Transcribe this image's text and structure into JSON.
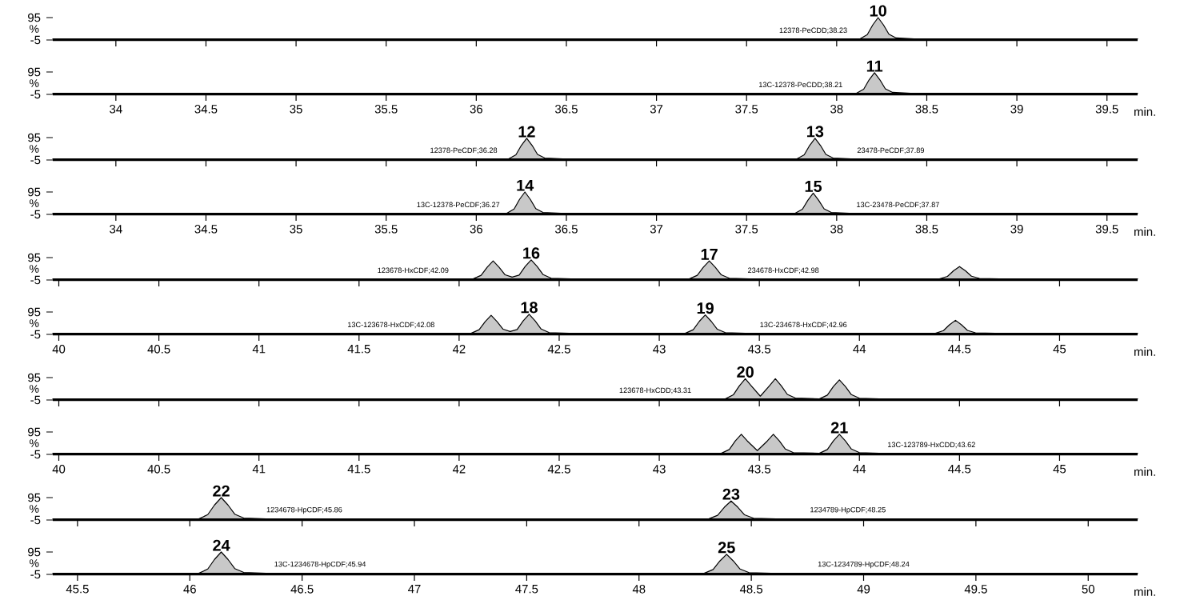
{
  "chart_data": [
    {
      "type": "area",
      "xlim": [
        33.65,
        39.67
      ],
      "xticks": [
        34,
        34.5,
        35,
        35.5,
        36,
        36.5,
        37,
        37.5,
        38,
        38.5,
        39,
        39.5
      ],
      "ylim": [
        -5,
        95
      ],
      "yticks": [
        95,
        -5
      ],
      "ylabel": "%",
      "tick_labels": "y",
      "series": [
        {
          "color": "#c8c8c8",
          "x": [
            33.65,
            38.13,
            38.17,
            38.2,
            38.23,
            38.26,
            38.29,
            38.33,
            38.43,
            39.67
          ],
          "values": [
            0,
            0,
            19,
            62,
            95,
            62,
            21,
            4,
            0,
            0
          ]
        }
      ],
      "annotations": [
        {
          "text": "10",
          "x": 38.23,
          "y": 95
        },
        {
          "text": "12378-PeCDD;38.23",
          "x": 37.87,
          "y": 0
        }
      ]
    },
    {
      "type": "area",
      "xlim": [
        33.65,
        39.67
      ],
      "xticks": [
        34,
        34.5,
        35,
        35.5,
        36,
        36.5,
        37,
        37.5,
        38,
        38.5,
        39,
        39.5
      ],
      "ylim": [
        -5,
        95
      ],
      "yticks": [
        95,
        -5
      ],
      "ylabel": "%",
      "xlabel": "min.",
      "series": [
        {
          "color": "#c8c8c8",
          "x": [
            33.65,
            38.11,
            38.15,
            38.18,
            38.21,
            38.24,
            38.27,
            38.31,
            38.41,
            39.67
          ],
          "values": [
            0,
            0,
            18,
            60,
            92,
            60,
            20,
            4,
            0,
            0
          ]
        }
      ],
      "annotations": [
        {
          "text": "11",
          "x": 38.21,
          "y": 92
        },
        {
          "text": "13C-12378-PeCDD;38.21",
          "x": 37.8,
          "y": 0
        }
      ]
    },
    {
      "type": "area",
      "xlim": [
        33.65,
        39.67
      ],
      "xticks": [
        34,
        34.5,
        35,
        35.5,
        36,
        36.5,
        37,
        37.5,
        38,
        38.5,
        39,
        39.5
      ],
      "ylim": [
        -5,
        95
      ],
      "yticks": [
        95,
        -5
      ],
      "ylabel": "%",
      "tick_labels": "y",
      "series": [
        {
          "color": "#c8c8c8",
          "x": [
            33.65,
            36.18,
            36.22,
            36.25,
            36.28,
            36.31,
            36.34,
            36.38,
            36.48,
            37.78,
            37.82,
            37.85,
            37.88,
            37.91,
            37.94,
            37.98,
            38.08,
            39.67
          ],
          "values": [
            0,
            0,
            18,
            60,
            92,
            60,
            20,
            4,
            0,
            0,
            18,
            60,
            92,
            60,
            20,
            4,
            0,
            0
          ]
        }
      ],
      "annotations": [
        {
          "text": "12",
          "x": 36.28,
          "y": 92
        },
        {
          "text": "12378-PeCDF;36.28",
          "x": 35.93,
          "y": 0
        },
        {
          "text": "13",
          "x": 37.88,
          "y": 92
        },
        {
          "text": "23478-PeCDF;37.89",
          "x": 38.3,
          "y": 0
        }
      ]
    },
    {
      "type": "area",
      "xlim": [
        33.65,
        39.67
      ],
      "xticks": [
        34,
        34.5,
        35,
        35.5,
        36,
        36.5,
        37,
        37.5,
        38,
        38.5,
        39,
        39.5
      ],
      "ylim": [
        -5,
        95
      ],
      "yticks": [
        95,
        -5
      ],
      "ylabel": "%",
      "xlabel": "min.",
      "series": [
        {
          "color": "#c8c8c8",
          "x": [
            33.65,
            36.17,
            36.21,
            36.24,
            36.27,
            36.3,
            36.33,
            36.37,
            36.47,
            37.77,
            37.81,
            37.84,
            37.87,
            37.9,
            37.93,
            37.97,
            38.07,
            39.67
          ],
          "values": [
            0,
            0,
            19,
            62,
            95,
            62,
            21,
            4,
            0,
            0,
            18,
            58,
            90,
            58,
            20,
            4,
            0,
            0
          ]
        }
      ],
      "annotations": [
        {
          "text": "14",
          "x": 36.27,
          "y": 95
        },
        {
          "text": "13C-12378-PeCDF;36.27",
          "x": 35.9,
          "y": 0
        },
        {
          "text": "15",
          "x": 37.87,
          "y": 90
        },
        {
          "text": "13C-23478-PeCDF;37.87",
          "x": 38.34,
          "y": 0
        }
      ]
    },
    {
      "type": "area",
      "xlim": [
        39.97,
        45.39
      ],
      "xticks": [
        40,
        40.5,
        41,
        41.5,
        42,
        42.5,
        43,
        43.5,
        44,
        44.5,
        45
      ],
      "ylim": [
        -5,
        95
      ],
      "yticks": [
        95,
        -5
      ],
      "ylabel": "%",
      "tick_labels": "y",
      "series": [
        {
          "color": "#c8c8c8",
          "x": [
            39.97,
            42.07,
            42.11,
            42.14,
            42.17,
            42.2,
            42.23,
            42.265,
            42.3,
            42.33,
            42.36,
            42.39,
            42.42,
            42.46,
            42.56,
            43.15,
            43.19,
            43.22,
            43.25,
            43.28,
            43.31,
            43.35,
            43.45,
            44.4,
            44.44,
            44.47,
            44.5,
            44.53,
            44.56,
            44.6,
            44.7,
            45.39
          ],
          "values": [
            0,
            0,
            16,
            52,
            80,
            52,
            18,
            8,
            17,
            55,
            85,
            55,
            19,
            3,
            0,
            0,
            16,
            52,
            80,
            52,
            18,
            3,
            0,
            0,
            11,
            36,
            55,
            36,
            12,
            2,
            0,
            0
          ]
        }
      ],
      "annotations": [
        {
          "text": "16",
          "x": 42.36,
          "y": 85
        },
        {
          "text": "123678-HxCDF;42.09",
          "x": 41.77,
          "y": 0
        },
        {
          "text": "17",
          "x": 43.25,
          "y": 80
        },
        {
          "text": "234678-HxCDF;42.98",
          "x": 43.62,
          "y": 0
        }
      ]
    },
    {
      "type": "area",
      "xlim": [
        39.97,
        45.39
      ],
      "xticks": [
        40,
        40.5,
        41,
        41.5,
        42,
        42.5,
        43,
        43.5,
        44,
        44.5,
        45
      ],
      "ylim": [
        -5,
        95
      ],
      "yticks": [
        95,
        -5
      ],
      "ylabel": "%",
      "xlabel": "min.",
      "series": [
        {
          "color": "#c8c8c8",
          "x": [
            39.97,
            42.06,
            42.1,
            42.13,
            42.16,
            42.19,
            42.22,
            42.255,
            42.29,
            42.32,
            42.35,
            42.38,
            42.41,
            42.45,
            42.55,
            43.13,
            43.17,
            43.2,
            43.23,
            43.26,
            43.29,
            43.33,
            43.43,
            44.38,
            44.42,
            44.45,
            44.48,
            44.51,
            44.54,
            44.58,
            44.68,
            45.39
          ],
          "values": [
            0,
            0,
            16,
            52,
            80,
            52,
            18,
            8,
            17,
            55,
            85,
            55,
            19,
            3,
            0,
            0,
            16,
            53,
            82,
            53,
            18,
            3,
            0,
            0,
            12,
            38,
            58,
            38,
            13,
            2,
            0,
            0
          ]
        }
      ],
      "annotations": [
        {
          "text": "18",
          "x": 42.35,
          "y": 85
        },
        {
          "text": "13C-123678-HxCDF;42.08",
          "x": 41.66,
          "y": 0
        },
        {
          "text": "19",
          "x": 43.23,
          "y": 82
        },
        {
          "text": "13C-234678-HxCDF;42.96",
          "x": 43.72,
          "y": 0
        }
      ]
    },
    {
      "type": "area",
      "xlim": [
        39.97,
        45.39
      ],
      "xticks": [
        40,
        40.5,
        41,
        41.5,
        42,
        42.5,
        43,
        43.5,
        44,
        44.5,
        45
      ],
      "ylim": [
        -5,
        95
      ],
      "yticks": [
        95,
        -5
      ],
      "ylabel": "%",
      "tick_labels": "y",
      "series": [
        {
          "color": "#c8c8c8",
          "x": [
            39.97,
            43.33,
            43.37,
            43.4,
            43.43,
            43.46,
            43.505,
            43.55,
            43.58,
            43.61,
            43.64,
            43.68,
            43.8,
            43.84,
            43.87,
            43.9,
            43.93,
            43.96,
            44.0,
            44.1,
            45.39
          ],
          "values": [
            0,
            0,
            18,
            58,
            90,
            58,
            12,
            58,
            90,
            58,
            20,
            4,
            0,
            17,
            55,
            85,
            55,
            19,
            3,
            0,
            0
          ]
        }
      ],
      "annotations": [
        {
          "text": "20",
          "x": 43.43,
          "y": 90
        },
        {
          "text": "123678-HxCDD;43.31",
          "x": 42.98,
          "y": 0
        }
      ]
    },
    {
      "type": "area",
      "xlim": [
        39.97,
        45.39
      ],
      "xticks": [
        40,
        40.5,
        41,
        41.5,
        42,
        42.5,
        43,
        43.5,
        44,
        44.5,
        45
      ],
      "ylim": [
        -5,
        95
      ],
      "yticks": [
        95,
        -5
      ],
      "ylabel": "%",
      "xlabel": "min.",
      "series": [
        {
          "color": "#c8c8c8",
          "x": [
            39.97,
            43.31,
            43.35,
            43.38,
            43.41,
            43.44,
            43.49,
            43.54,
            43.57,
            43.6,
            43.63,
            43.67,
            43.8,
            43.84,
            43.87,
            43.9,
            43.93,
            43.96,
            44.0,
            44.1,
            45.39
          ],
          "values": [
            0,
            0,
            17,
            55,
            85,
            55,
            12,
            55,
            85,
            55,
            19,
            3,
            0,
            17,
            55,
            85,
            55,
            19,
            3,
            0,
            0
          ]
        }
      ],
      "annotations": [
        {
          "text": "21",
          "x": 43.9,
          "y": 85
        },
        {
          "text": "13C-123789-HxCDD;43.62",
          "x": 44.36,
          "y": 0
        }
      ]
    },
    {
      "type": "area",
      "xlim": [
        45.39,
        50.22
      ],
      "xticks": [
        45.5,
        46,
        46.5,
        47,
        47.5,
        48,
        48.5,
        49,
        49.5,
        50
      ],
      "ylim": [
        -5,
        95
      ],
      "yticks": [
        95,
        -5
      ],
      "ylabel": "%",
      "tick_labels": "y",
      "series": [
        {
          "color": "#c8c8c8",
          "x": [
            45.39,
            46.04,
            46.08,
            46.11,
            46.14,
            46.17,
            46.2,
            46.24,
            46.34,
            48.31,
            48.35,
            48.38,
            48.41,
            48.44,
            48.47,
            48.51,
            48.61,
            50.22
          ],
          "values": [
            0,
            0,
            19,
            62,
            95,
            62,
            21,
            4,
            0,
            0,
            16,
            52,
            80,
            52,
            18,
            3,
            0,
            0
          ]
        }
      ],
      "annotations": [
        {
          "text": "22",
          "x": 46.14,
          "y": 95
        },
        {
          "text": "1234678-HpCDF;45.86",
          "x": 46.51,
          "y": 0
        },
        {
          "text": "23",
          "x": 48.41,
          "y": 80
        },
        {
          "text": "1234789-HpCDF;48.25",
          "x": 48.93,
          "y": 0
        }
      ]
    },
    {
      "type": "area",
      "xlim": [
        45.39,
        50.22
      ],
      "xticks": [
        45.5,
        46,
        46.5,
        47,
        47.5,
        48,
        48.5,
        49,
        49.5,
        50
      ],
      "ylim": [
        -5,
        95
      ],
      "yticks": [
        95,
        -5
      ],
      "ylabel": "%",
      "xlabel": "min.",
      "series": [
        {
          "color": "#c8c8c8",
          "x": [
            45.39,
            46.04,
            46.08,
            46.11,
            46.14,
            46.17,
            46.2,
            46.24,
            46.34,
            48.29,
            48.33,
            48.36,
            48.39,
            48.42,
            48.45,
            48.49,
            48.59,
            50.22
          ],
          "values": [
            0,
            0,
            19,
            62,
            95,
            62,
            21,
            4,
            0,
            0,
            17,
            55,
            85,
            55,
            19,
            3,
            0,
            0
          ]
        }
      ],
      "annotations": [
        {
          "text": "24",
          "x": 46.14,
          "y": 95
        },
        {
          "text": "13C-1234678-HpCDF;45.94",
          "x": 46.58,
          "y": 0
        },
        {
          "text": "25",
          "x": 48.39,
          "y": 85
        },
        {
          "text": "13C-1234789-HpCDF;48.24",
          "x": 49.0,
          "y": 0
        }
      ]
    }
  ]
}
